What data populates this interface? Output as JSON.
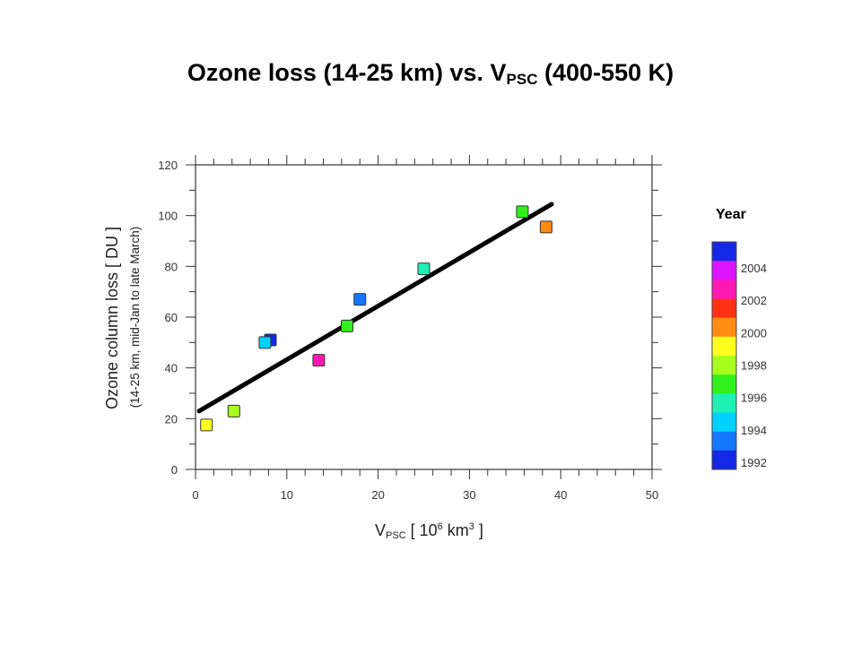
{
  "title": {
    "main": "Ozone loss (14-25 km) vs. V",
    "sub": "PSC",
    "tail": " (400-550 K)"
  },
  "chart_data": {
    "type": "scatter",
    "xlabel": {
      "v": "V",
      "sub": "PSC",
      "mid": " [ 10",
      "sup6": "6",
      "km": " km",
      "sup3": "3",
      "end": " ]"
    },
    "ylabel": "Ozone column loss [ DU ]",
    "ylabel_sub": "(14-25 km, mid-Jan to late March)",
    "xlim": [
      0,
      50
    ],
    "ylim": [
      0,
      120
    ],
    "xticks": [
      0,
      10,
      20,
      30,
      40,
      50
    ],
    "yticks": [
      0,
      20,
      40,
      60,
      80,
      100,
      120
    ],
    "fit_line": {
      "x": [
        0.4,
        39
      ],
      "y": [
        23,
        104.5
      ]
    },
    "points": [
      {
        "x": 1.2,
        "y": 17.5,
        "color": "#ffff20"
      },
      {
        "x": 4.2,
        "y": 23,
        "color": "#a8ff1e"
      },
      {
        "x": 8.2,
        "y": 51,
        "color": "#1428e6"
      },
      {
        "x": 7.6,
        "y": 50,
        "color": "#00d2ff"
      },
      {
        "x": 13.5,
        "y": 43,
        "color": "#ff18b4"
      },
      {
        "x": 16.6,
        "y": 56.5,
        "color": "#32f01e"
      },
      {
        "x": 18,
        "y": 67,
        "color": "#1478ff"
      },
      {
        "x": 25,
        "y": 79,
        "color": "#1ef0b4"
      },
      {
        "x": 35.8,
        "y": 101.5,
        "color": "#32f01e"
      },
      {
        "x": 38.4,
        "y": 95.5,
        "color": "#ff8c14"
      }
    ],
    "colorbar": {
      "title": "Year",
      "colors": [
        "#dc14ff",
        "#ff18b4",
        "#ff3214",
        "#ff8c14",
        "#ffff20",
        "#a8ff1e",
        "#32f01e",
        "#1ef0b4",
        "#00d2ff",
        "#1478ff",
        "#1428e6"
      ],
      "top_color": "#1428e6",
      "labels": [
        "2004",
        "2002",
        "2000",
        "1998",
        "1996",
        "1994",
        "1992"
      ]
    }
  }
}
